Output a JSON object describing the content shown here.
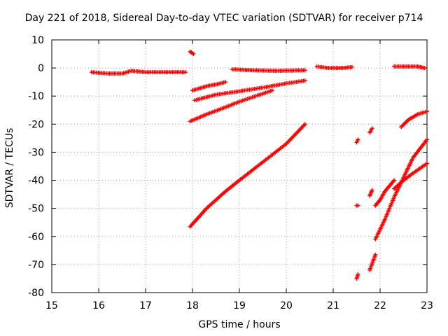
{
  "chart_data": {
    "type": "scatter",
    "title": "Day 221 of 2018, Sidereal Day-to-day VTEC variation (SDTVAR) for receiver p714",
    "xlabel": "GPS time / hours",
    "ylabel": "SDTVAR / TECUs",
    "xlim": [
      15,
      23
    ],
    "ylim": [
      -80,
      10
    ],
    "x_ticks": [
      "15",
      "16",
      "17",
      "18",
      "19",
      "20",
      "21",
      "22",
      "23"
    ],
    "y_ticks": [
      "10",
      "0",
      "-10",
      "-20",
      "-30",
      "-40",
      "-50",
      "-60",
      "-70",
      "-80"
    ],
    "grid": true,
    "marker": "plus",
    "color": "#ff0000",
    "series": [
      {
        "x": [
          15.85,
          16.2,
          16.5,
          16.7,
          17.0,
          17.4,
          17.85
        ],
        "y": [
          -1.5,
          -2.0,
          -2.0,
          -1.0,
          -1.5,
          -1.5,
          -1.5
        ]
      },
      {
        "x": [
          17.95,
          18.02
        ],
        "y": [
          5.8,
          5.0
        ]
      },
      {
        "x": [
          18.0,
          18.3,
          18.6,
          18.7
        ],
        "y": [
          -8.0,
          -6.5,
          -5.5,
          -5.0
        ]
      },
      {
        "x": [
          18.05,
          18.5,
          19.0,
          19.5,
          20.0,
          20.4
        ],
        "y": [
          -11.5,
          -9.5,
          -8.3,
          -7.0,
          -5.5,
          -4.5
        ]
      },
      {
        "x": [
          17.95,
          18.3,
          18.7,
          19.0,
          19.35,
          19.7
        ],
        "y": [
          -19.0,
          -16.5,
          -14.0,
          -12.0,
          -10.0,
          -8.0
        ]
      },
      {
        "x": [
          17.95,
          18.3,
          18.7,
          19.0,
          19.5,
          20.0,
          20.4
        ],
        "y": [
          -56.5,
          -50.0,
          -44.0,
          -40.0,
          -33.5,
          -27.0,
          -20.0
        ]
      },
      {
        "x": [
          18.85,
          19.3,
          19.8,
          20.4
        ],
        "y": [
          -0.5,
          -0.8,
          -1.0,
          -0.8
        ]
      },
      {
        "x": [
          20.65,
          20.9,
          21.2,
          21.4
        ],
        "y": [
          0.5,
          0.0,
          0.0,
          0.3
        ]
      },
      {
        "x": [
          21.5,
          21.53
        ],
        "y": [
          -26.5,
          -25.5
        ]
      },
      {
        "x": [
          21.5,
          21.53
        ],
        "y": [
          -49.0,
          -49.0
        ]
      },
      {
        "x": [
          21.5,
          21.53
        ],
        "y": [
          -75.0,
          -73.5
        ]
      },
      {
        "x": [
          21.78,
          21.83
        ],
        "y": [
          -23.0,
          -21.5
        ]
      },
      {
        "x": [
          21.78,
          21.83
        ],
        "y": [
          -45.5,
          -43.5
        ]
      },
      {
        "x": [
          21.78,
          21.9
        ],
        "y": [
          -72.0,
          -66.5
        ]
      },
      {
        "x": [
          21.9,
          22.0,
          22.1,
          22.3
        ],
        "y": [
          -49.0,
          -47.0,
          -44.0,
          -40.0
        ]
      },
      {
        "x": [
          21.9,
          22.1,
          22.3,
          22.5,
          22.7,
          23.0
        ],
        "y": [
          -61.0,
          -54.0,
          -46.0,
          -39.0,
          -32.0,
          -25.5
        ]
      },
      {
        "x": [
          22.3,
          22.5,
          22.7,
          23.0
        ],
        "y": [
          -43.0,
          -40.0,
          -37.5,
          -34.0
        ]
      },
      {
        "x": [
          22.45,
          22.6,
          22.8,
          23.0
        ],
        "y": [
          -21.0,
          -18.5,
          -16.5,
          -15.5
        ]
      },
      {
        "x": [
          22.3,
          22.6,
          22.8,
          22.95
        ],
        "y": [
          0.5,
          0.5,
          0.5,
          0.0
        ]
      }
    ]
  }
}
